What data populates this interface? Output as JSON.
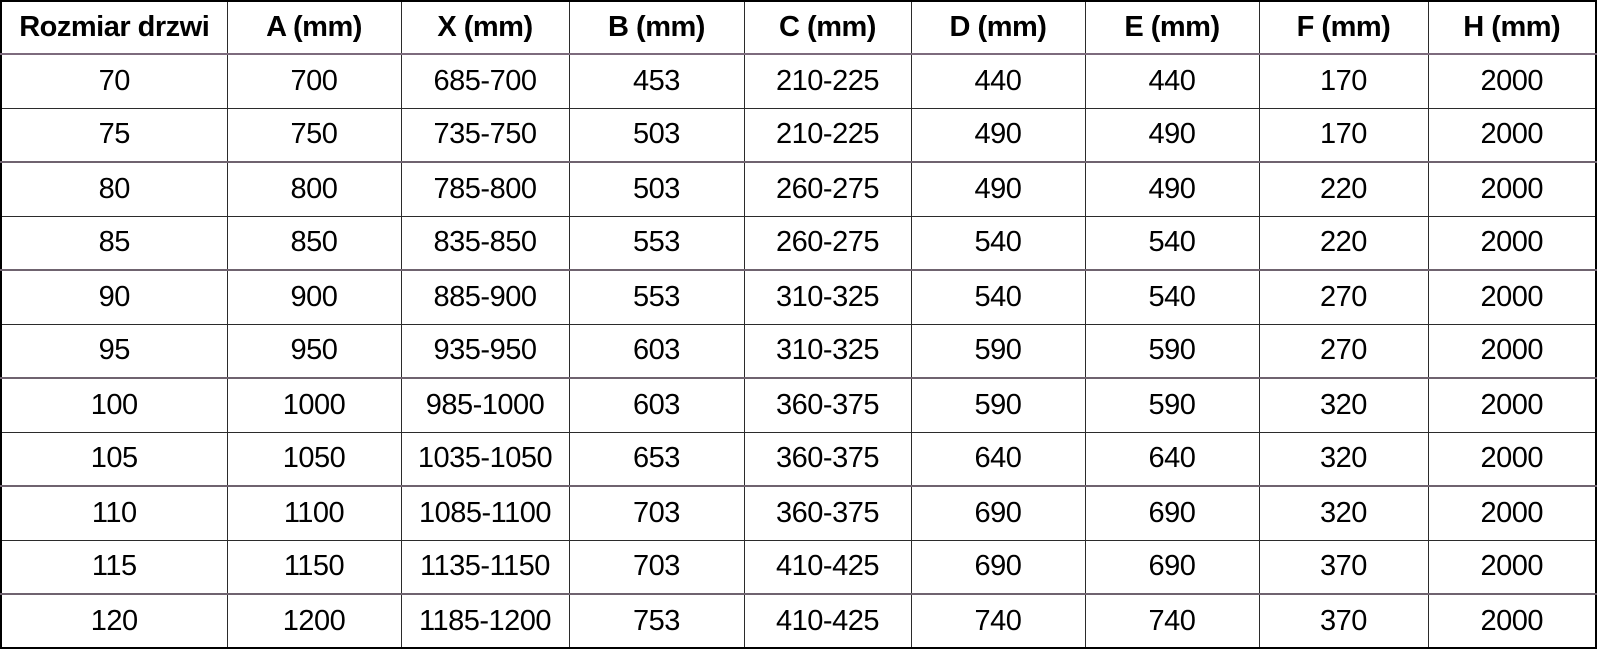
{
  "chart_data": {
    "type": "table",
    "columns": [
      "Rozmiar drzwi",
      "A (mm)",
      "X (mm)",
      "B (mm)",
      "C (mm)",
      "D (mm)",
      "E (mm)",
      "F (mm)",
      "H (mm)"
    ],
    "rows": [
      [
        "70",
        "700",
        "685-700",
        "453",
        "210-225",
        "440",
        "440",
        "170",
        "2000"
      ],
      [
        "75",
        "750",
        "735-750",
        "503",
        "210-225",
        "490",
        "490",
        "170",
        "2000"
      ],
      [
        "80",
        "800",
        "785-800",
        "503",
        "260-275",
        "490",
        "490",
        "220",
        "2000"
      ],
      [
        "85",
        "850",
        "835-850",
        "553",
        "260-275",
        "540",
        "540",
        "220",
        "2000"
      ],
      [
        "90",
        "900",
        "885-900",
        "553",
        "310-325",
        "540",
        "540",
        "270",
        "2000"
      ],
      [
        "95",
        "950",
        "935-950",
        "603",
        "310-325",
        "590",
        "590",
        "270",
        "2000"
      ],
      [
        "100",
        "1000",
        "985-1000",
        "603",
        "360-375",
        "590",
        "590",
        "320",
        "2000"
      ],
      [
        "105",
        "1050",
        "1035-1050",
        "653",
        "360-375",
        "640",
        "640",
        "320",
        "2000"
      ],
      [
        "110",
        "1100",
        "1085-1100",
        "703",
        "360-375",
        "690",
        "690",
        "320",
        "2000"
      ],
      [
        "115",
        "1150",
        "1135-1150",
        "703",
        "410-425",
        "690",
        "690",
        "370",
        "2000"
      ],
      [
        "120",
        "1200",
        "1185-1200",
        "753",
        "410-425",
        "740",
        "740",
        "370",
        "2000"
      ]
    ],
    "title": "",
    "layout_hints": {
      "grid": true,
      "header_row": true,
      "text_align": "center"
    }
  },
  "colors": {
    "outer_border": "#000000",
    "grid_line": "#2b2b2b",
    "header_underline": "#7d6b7d",
    "thick_separator": "#6f636f",
    "background": "#ffffff",
    "text": "#000000"
  }
}
